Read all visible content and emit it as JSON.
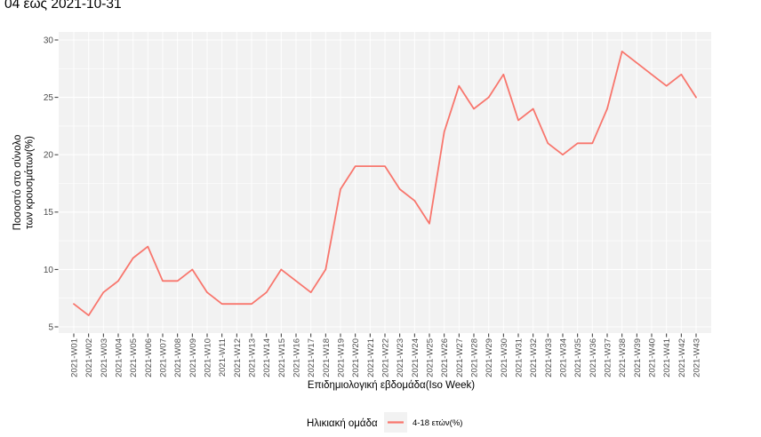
{
  "chart_data": {
    "type": "line",
    "title_clipped": "04 έως 2021-10-31",
    "xlabel": "Επιδημιολογική εβδομάδα(Iso Week)",
    "ylabel": "Ποσοστό στο σύνολο των κρουσμάτων(%)",
    "ylabel_lines": [
      "Ποσοστό στο σύνολο",
      "των κρουσμάτων(%)"
    ],
    "legend_title": "Ηλικιακή ομάδα",
    "legend_position": "bottom",
    "grid": true,
    "ylim": [
      5,
      30
    ],
    "yticks": [
      5,
      10,
      15,
      20,
      25,
      30
    ],
    "categories": [
      "2021-W01",
      "2021-W02",
      "2021-W03",
      "2021-W04",
      "2021-W05",
      "2021-W06",
      "2021-W07",
      "2021-W08",
      "2021-W09",
      "2021-W10",
      "2021-W11",
      "2021-W12",
      "2021-W13",
      "2021-W14",
      "2021-W15",
      "2021-W16",
      "2021-W17",
      "2021-W18",
      "2021-W19",
      "2021-W20",
      "2021-W21",
      "2021-W22",
      "2021-W23",
      "2021-W24",
      "2021-W25",
      "2021-W26",
      "2021-W27",
      "2021-W28",
      "2021-W29",
      "2021-W30",
      "2021-W31",
      "2021-W32",
      "2021-W33",
      "2021-W34",
      "2021-W35",
      "2021-W36",
      "2021-W37",
      "2021-W38",
      "2021-W39",
      "2021-W40",
      "2021-W41",
      "2021-W42",
      "2021-W43"
    ],
    "series": [
      {
        "name": "4-18 ετών(%)",
        "color": "#F8766D",
        "values": [
          7,
          6,
          8,
          9,
          11,
          12,
          9,
          9,
          10,
          8,
          7,
          7,
          7,
          8,
          10,
          9,
          8,
          10,
          17,
          19,
          19,
          19,
          17,
          16,
          14,
          22,
          26,
          24,
          25,
          27,
          23,
          24,
          21,
          20,
          21,
          21,
          24,
          29,
          28,
          27,
          26,
          27,
          25
        ]
      }
    ],
    "colors": {
      "panel_background": "#F2F2F2",
      "grid_major": "#FFFFFF",
      "grid_minor": "#FFFFFF",
      "tick_mark": "#333333",
      "tick_label": "#4D4D4D",
      "axis_title": "#000000",
      "title_text": "#000000",
      "legend_key_background": "#F2F2F2"
    }
  }
}
